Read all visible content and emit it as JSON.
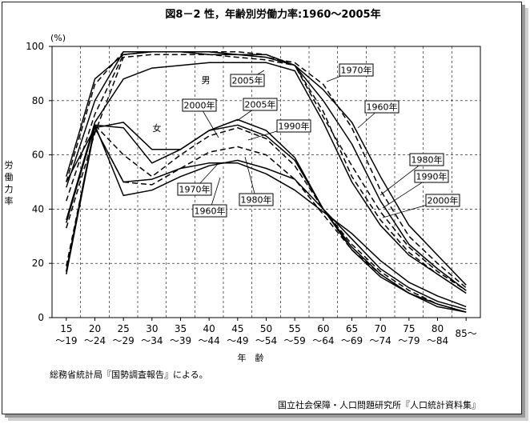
{
  "chart_data": {
    "type": "line",
    "title": "図8－2 性，年齢別労働力率:1960～2005年",
    "ylabel": "労働力率",
    "yunit": "(%)",
    "xlabel": "年　齢",
    "ylim": [
      0,
      100
    ],
    "yticks": [
      0,
      20,
      40,
      60,
      80,
      100
    ],
    "grid": true,
    "categories": [
      {
        "top": "15",
        "bottom": "～19"
      },
      {
        "top": "20",
        "bottom": "～24"
      },
      {
        "top": "25",
        "bottom": "～29"
      },
      {
        "top": "30",
        "bottom": "～34"
      },
      {
        "top": "35",
        "bottom": "～39"
      },
      {
        "top": "40",
        "bottom": "～44"
      },
      {
        "top": "45",
        "bottom": "～49"
      },
      {
        "top": "50",
        "bottom": "～54"
      },
      {
        "top": "55",
        "bottom": "～59"
      },
      {
        "top": "60",
        "bottom": "～64"
      },
      {
        "top": "65",
        "bottom": "～69"
      },
      {
        "top": "70",
        "bottom": "～74"
      },
      {
        "top": "75",
        "bottom": "～79"
      },
      {
        "top": "80",
        "bottom": "～84"
      },
      {
        "top": "85～",
        "bottom": ""
      }
    ],
    "series": [
      {
        "sex": "male",
        "year": "1960",
        "style": "solid",
        "values": [
          52,
          88,
          97,
          98,
          98,
          97,
          97,
          96,
          93,
          84,
          72,
          52,
          34,
          23,
          12
        ]
      },
      {
        "sex": "male",
        "year": "1970",
        "style": "dashed",
        "values": [
          50,
          86,
          98,
          98,
          98,
          98,
          97,
          96,
          94,
          86,
          70,
          47,
          30,
          20,
          11
        ]
      },
      {
        "sex": "male",
        "year": "1980",
        "style": "solid",
        "values": [
          48,
          80,
          98,
          98,
          98,
          98,
          97,
          97,
          93,
          80,
          64,
          43,
          27,
          18,
          10
        ]
      },
      {
        "sex": "male",
        "year": "1990",
        "style": "dashed",
        "values": [
          43,
          75,
          97,
          98,
          98,
          98,
          98,
          97,
          93,
          74,
          56,
          39,
          26,
          17,
          10
        ]
      },
      {
        "sex": "male",
        "year": "2000",
        "style": "solid",
        "values": [
          36,
          72,
          88,
          92,
          93,
          94,
          94,
          94,
          91,
          72,
          50,
          34,
          23,
          16,
          9
        ]
      },
      {
        "sex": "male",
        "year": "2005",
        "style": "dashed",
        "values": [
          33,
          68,
          96,
          97,
          97,
          97,
          96,
          95,
          93,
          76,
          52,
          36,
          24,
          16,
          9
        ]
      },
      {
        "sex": "female",
        "year": "1960",
        "style": "solid",
        "values": [
          50,
          70,
          50,
          51,
          55,
          57,
          57,
          53,
          47,
          39,
          31,
          21,
          13,
          8,
          4
        ]
      },
      {
        "sex": "female",
        "year": "1970",
        "style": "solid",
        "values": [
          35,
          71,
          45,
          47,
          52,
          56,
          58,
          55,
          51,
          40,
          29,
          18,
          11,
          6,
          3
        ]
      },
      {
        "sex": "female",
        "year": "1980",
        "style": "dashed",
        "values": [
          19,
          70,
          50,
          49,
          55,
          61,
          63,
          60,
          51,
          38,
          25,
          16,
          9,
          5,
          2
        ]
      },
      {
        "sex": "female",
        "year": "1990",
        "style": "dashed",
        "values": [
          17,
          71,
          60,
          52,
          60,
          67,
          70,
          66,
          56,
          40,
          27,
          17,
          10,
          5,
          2
        ]
      },
      {
        "sex": "female",
        "year": "2000",
        "style": "solid",
        "values": [
          17,
          71,
          70,
          57,
          62,
          69,
          71,
          67,
          58,
          40,
          25,
          15,
          9,
          4,
          2
        ]
      },
      {
        "sex": "female",
        "year": "2005",
        "style": "solid",
        "values": [
          16,
          70,
          72,
          62,
          62,
          69,
          73,
          69,
          59,
          40,
          26,
          16,
          9,
          5,
          2
        ]
      }
    ],
    "annotations": {
      "male": "男",
      "female": "女",
      "labels": [
        "2005年",
        "1970年",
        "1960年",
        "1980年",
        "1990年",
        "2000年",
        "2000年",
        "2005年",
        "1990年",
        "1970年",
        "1960年",
        "1980年"
      ]
    }
  },
  "source_note": "総務省統計局『国勢調査報告』による。",
  "publisher_note": "国立社会保障・人口問題研究所『人口統計資料集』"
}
